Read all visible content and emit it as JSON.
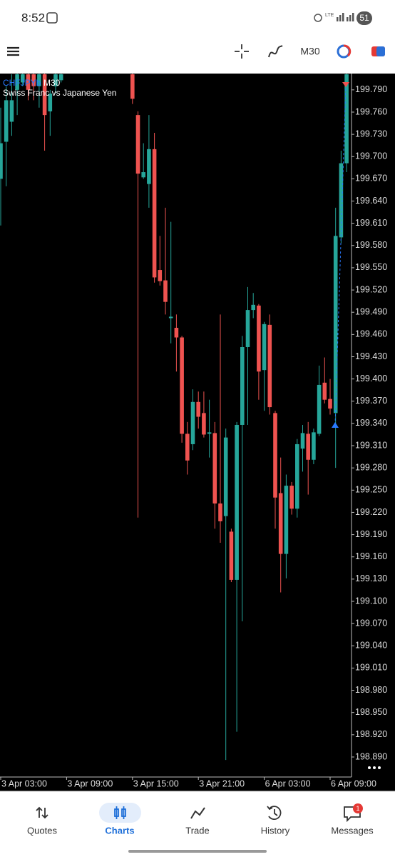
{
  "status_bar": {
    "time": "8:52",
    "battery": "51"
  },
  "toolbar": {
    "timeframe": "M30"
  },
  "chart_data": {
    "type": "candlestick",
    "symbol": "CHFJPYb",
    "timeframe": "M30",
    "description": "Swiss Franc vs  Japanese Yen",
    "up_color": "#26a69a",
    "down_color": "#ef5350",
    "categories": [
      "3 Apr 03:00",
      null,
      null,
      null,
      null,
      null,
      null,
      null,
      null,
      null,
      null,
      null,
      "3 Apr 09:00",
      null,
      null,
      null,
      null,
      null,
      null,
      null,
      null,
      null,
      null,
      null,
      "3 Apr 15:00",
      null,
      null,
      null,
      null,
      null,
      null,
      null,
      null,
      null,
      null,
      null,
      "3 Apr 21:00",
      null,
      null,
      null,
      null,
      null,
      null,
      null,
      null,
      null,
      null,
      null,
      "6 Apr 03:00",
      null,
      null,
      null,
      null,
      null,
      null,
      null,
      null,
      null,
      null,
      null,
      "6 Apr 09:00",
      null,
      null,
      null
    ],
    "open": [
      199.67,
      199.72,
      199.747,
      199.79,
      199.8,
      199.811,
      199.811,
      199.795,
      199.811,
      199.761,
      199.795,
      199.803,
      null,
      null,
      null,
      null,
      null,
      null,
      null,
      null,
      null,
      null,
      null,
      null,
      199.811,
      199.756,
      199.672,
      199.663,
      199.71,
      199.547,
      199.533,
      199.482,
      199.469,
      199.456,
      199.326,
      199.312,
      199.369,
      199.354,
      199.326,
      199.327,
      199.232,
      199.215,
      199.194,
      199.129,
      199.338,
      199.443,
      199.493,
      199.499,
      199.412,
      199.473,
      199.354,
      199.246,
      199.164,
      199.256,
      199.225,
      199.306,
      199.326,
      199.291,
      199.326,
      199.395,
      199.373,
      199.354,
      199.591,
      199.691
    ],
    "high": [
      199.766,
      199.795,
      199.811,
      199.814,
      199.814,
      199.814,
      199.814,
      199.814,
      199.814,
      199.79,
      199.814,
      199.814,
      null,
      null,
      null,
      null,
      null,
      null,
      null,
      null,
      null,
      null,
      null,
      null,
      199.819,
      199.761,
      199.718,
      199.756,
      199.732,
      199.593,
      199.631,
      199.612,
      199.487,
      199.458,
      199.342,
      199.386,
      199.383,
      199.383,
      199.372,
      199.342,
      199.487,
      199.333,
      199.198,
      199.342,
      199.458,
      199.524,
      199.516,
      199.501,
      199.477,
      199.487,
      199.357,
      199.294,
      199.271,
      199.261,
      199.319,
      199.338,
      199.342,
      199.333,
      199.418,
      199.429,
      199.4,
      199.631,
      199.708,
      199.819
    ],
    "low": [
      199.607,
      199.66,
      199.728,
      199.756,
      199.795,
      199.776,
      199.776,
      199.766,
      199.708,
      199.728,
      199.785,
      199.8,
      null,
      null,
      null,
      null,
      null,
      null,
      null,
      null,
      null,
      null,
      null,
      null,
      199.771,
      199.213,
      199.67,
      199.631,
      199.53,
      199.526,
      199.487,
      199.448,
      199.41,
      199.314,
      199.271,
      199.304,
      199.333,
      199.321,
      199.294,
      199.198,
      199.179,
      198.886,
      199.126,
      198.924,
      199.073,
      199.338,
      199.482,
      199.372,
      199.357,
      199.352,
      199.198,
      199.112,
      199.131,
      199.217,
      199.213,
      199.275,
      199.244,
      199.285,
      199.323,
      199.367,
      199.352,
      199.28,
      199.583,
      199.679
    ],
    "close": [
      199.718,
      199.776,
      199.776,
      199.811,
      199.811,
      199.79,
      199.795,
      199.811,
      199.756,
      199.785,
      199.811,
      199.811,
      null,
      null,
      null,
      null,
      null,
      null,
      null,
      null,
      null,
      null,
      null,
      null,
      199.778,
      199.677,
      199.679,
      199.71,
      199.537,
      199.532,
      199.504,
      199.484,
      199.456,
      199.326,
      199.29,
      199.369,
      199.349,
      199.325,
      199.328,
      199.232,
      199.208,
      199.321,
      199.129,
      199.338,
      199.443,
      199.493,
      199.5,
      199.41,
      199.474,
      199.362,
      199.24,
      199.164,
      199.256,
      199.225,
      199.312,
      199.327,
      199.291,
      199.328,
      199.392,
      199.372,
      199.36,
      199.593,
      199.691,
      199.811
    ],
    "ylim": [
      198.863,
      199.812
    ],
    "yticks": [
      {
        "value": 199.79,
        "label": "199.790"
      },
      {
        "value": 199.76,
        "label": "199.760"
      },
      {
        "value": 199.73,
        "label": "199.730"
      },
      {
        "value": 199.7,
        "label": "199.700"
      },
      {
        "value": 199.67,
        "label": "199.670"
      },
      {
        "value": 199.64,
        "label": "199.640"
      },
      {
        "value": 199.61,
        "label": "199.610"
      },
      {
        "value": 199.58,
        "label": "199.580"
      },
      {
        "value": 199.55,
        "label": "199.550"
      },
      {
        "value": 199.52,
        "label": "199.520"
      },
      {
        "value": 199.49,
        "label": "199.490"
      },
      {
        "value": 199.46,
        "label": "199.460"
      },
      {
        "value": 199.43,
        "label": "199.430"
      },
      {
        "value": 199.4,
        "label": "199.400"
      },
      {
        "value": 199.37,
        "label": "199.370"
      },
      {
        "value": 199.34,
        "label": "199.340"
      },
      {
        "value": 199.31,
        "label": "199.310"
      },
      {
        "value": 199.28,
        "label": "199.280"
      },
      {
        "value": 199.25,
        "label": "199.250"
      },
      {
        "value": 199.22,
        "label": "199.220"
      },
      {
        "value": 199.19,
        "label": "199.190"
      },
      {
        "value": 199.16,
        "label": "199.160"
      },
      {
        "value": 199.13,
        "label": "199.130"
      },
      {
        "value": 199.1,
        "label": "199.100"
      },
      {
        "value": 199.07,
        "label": "199.070"
      },
      {
        "value": 199.04,
        "label": "199.040"
      },
      {
        "value": 199.01,
        "label": "199.010"
      },
      {
        "value": 198.98,
        "label": "198.980"
      },
      {
        "value": 198.95,
        "label": "198.950"
      },
      {
        "value": 198.92,
        "label": "198.920"
      },
      {
        "value": 198.89,
        "label": "198.890"
      }
    ]
  },
  "nav": {
    "items": [
      "Quotes",
      "Charts",
      "Trade",
      "History",
      "Messages"
    ],
    "active": 1,
    "badge": 1
  }
}
